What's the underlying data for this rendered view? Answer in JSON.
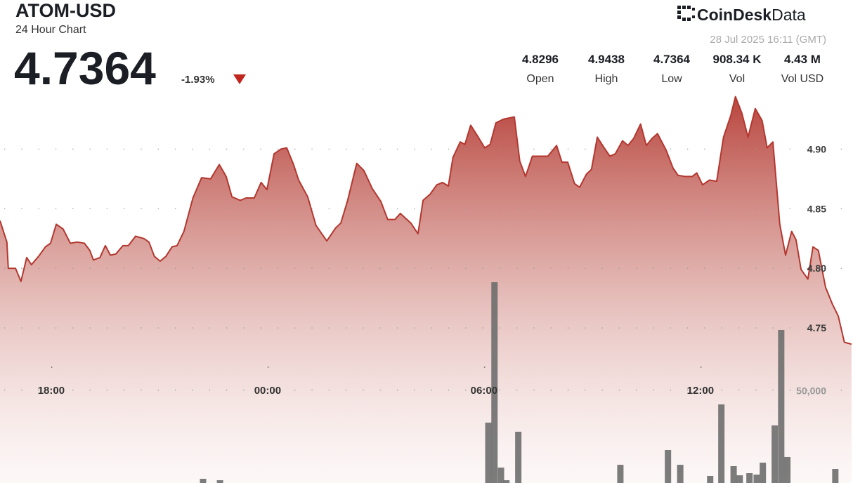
{
  "header": {
    "symbol": "ATOM-USD",
    "subtitle": "24 Hour Chart",
    "price": "4.7364",
    "change": "-1.93%",
    "brand": "CoinDesk",
    "brand_suffix": "Data",
    "timestamp": "28 Jul 2025 16:11 (GMT)",
    "stats": [
      {
        "value": "4.8296",
        "label": "Open"
      },
      {
        "value": "4.9438",
        "label": "High"
      },
      {
        "value": "4.7364",
        "label": "Low"
      },
      {
        "value": "908.34 K",
        "label": "Vol"
      },
      {
        "value": "4.43 M",
        "label": "Vol USD"
      }
    ]
  },
  "chart_data": {
    "type": "area",
    "color": "#b3372f",
    "grid": true,
    "x": [
      16.58,
      16.77,
      16.81,
      17.01,
      17.16,
      17.32,
      17.45,
      17.65,
      17.84,
      17.98,
      18.14,
      18.33,
      18.53,
      18.72,
      18.92,
      19.07,
      19.17,
      19.35,
      19.5,
      19.64,
      19.79,
      19.99,
      20.14,
      20.34,
      20.57,
      20.71,
      20.86,
      21.02,
      21.18,
      21.35,
      21.49,
      21.68,
      21.93,
      22.17,
      22.42,
      22.66,
      22.85,
      23.01,
      23.24,
      23.4,
      23.63,
      23.82,
      23.98,
      24.18,
      24.37,
      24.53,
      24.72,
      24.86,
      25.11,
      25.34,
      25.64,
      25.89,
      26.03,
      26.22,
      26.47,
      26.67,
      26.9,
      27.14,
      27.33,
      27.53,
      27.68,
      27.97,
      28.17,
      28.31,
      28.5,
      28.69,
      28.85,
      29.01,
      29.14,
      29.34,
      29.47,
      29.63,
      29.82,
      30.02,
      30.17,
      30.33,
      30.53,
      30.84,
      30.99,
      31.15,
      31.34,
      31.77,
      32.01,
      32.16,
      32.32,
      32.51,
      32.65,
      32.84,
      32.98,
      33.14,
      33.33,
      33.49,
      33.64,
      33.84,
      33.99,
      34.15,
      34.34,
      34.5,
      34.66,
      34.81,
      35.05,
      35.24,
      35.38,
      35.57,
      35.77,
      35.9,
      36.06,
      36.25,
      36.45,
      36.64,
      36.84,
      36.97,
      37.15,
      37.32,
      37.52,
      37.71,
      37.85,
      38.01,
      38.2,
      38.36,
      38.53,
      38.65,
      38.79,
      38.98,
      39.12,
      39.27,
      39.47,
      39.66,
      39.82,
      39.99,
      40.19
    ],
    "values": [
      4.84,
      4.822,
      4.8,
      4.8,
      4.789,
      4.809,
      4.803,
      4.81,
      4.818,
      4.821,
      4.837,
      4.833,
      4.821,
      4.822,
      4.821,
      4.815,
      4.807,
      4.809,
      4.819,
      4.811,
      4.812,
      4.819,
      4.819,
      4.827,
      4.825,
      4.822,
      4.81,
      4.806,
      4.81,
      4.818,
      4.819,
      4.831,
      4.859,
      4.876,
      4.875,
      4.887,
      4.877,
      4.86,
      4.857,
      4.859,
      4.859,
      4.872,
      4.866,
      4.896,
      4.9,
      4.901,
      4.887,
      4.874,
      4.86,
      4.836,
      4.823,
      4.834,
      4.838,
      4.857,
      4.888,
      4.882,
      4.867,
      4.856,
      4.841,
      4.841,
      4.846,
      4.838,
      4.829,
      4.857,
      4.862,
      4.87,
      4.872,
      4.869,
      4.893,
      4.906,
      4.904,
      4.92,
      4.911,
      4.901,
      4.904,
      4.922,
      4.925,
      4.927,
      4.89,
      4.877,
      4.894,
      4.894,
      4.903,
      4.889,
      4.889,
      4.871,
      4.868,
      4.879,
      4.883,
      4.91,
      4.901,
      4.894,
      4.896,
      4.907,
      4.903,
      4.909,
      4.921,
      4.903,
      4.909,
      4.913,
      4.899,
      4.884,
      4.878,
      4.877,
      4.877,
      4.88,
      4.87,
      4.874,
      4.873,
      4.91,
      4.928,
      4.944,
      4.93,
      4.91,
      4.934,
      4.924,
      4.901,
      4.906,
      4.837,
      4.811,
      4.831,
      4.824,
      4.799,
      4.791,
      4.818,
      4.815,
      4.784,
      4.77,
      4.76,
      4.738,
      4.7364
    ],
    "xlim": [
      16.58,
      40.23
    ],
    "xticks": [
      {
        "value": 18,
        "label": "18:00"
      },
      {
        "value": 24,
        "label": "00:00"
      },
      {
        "value": 30,
        "label": "06:00"
      },
      {
        "value": 36,
        "label": "12:00"
      }
    ],
    "ylim": [
      4.62,
      5.025
    ],
    "yticks": [
      4.75,
      {
        "value": 4.8,
        "label": "4.80"
      },
      4.85,
      {
        "value": 4.9,
        "label": "4.90"
      }
    ],
    "volume": {
      "axis": "y2",
      "color": "#6e6e6e",
      "x": [
        22.21,
        22.68,
        30.12,
        30.29,
        30.47,
        30.62,
        30.95,
        33.78,
        35.1,
        35.44,
        36.27,
        36.58,
        36.92,
        37.09,
        37.36,
        37.56,
        37.73,
        38.06,
        38.24,
        38.41,
        39.74
      ],
      "values": [
        2270,
        1500,
        32500,
        108080,
        8300,
        1500,
        27600,
        9800,
        17760,
        9800,
        3780,
        42300,
        9070,
        4160,
        5290,
        4530,
        10960,
        31000,
        82400,
        14000,
        7560
      ]
    },
    "y2lim": [
      0,
      260000
    ],
    "y2ticks": [
      {
        "value": 50000,
        "label": "50,000"
      }
    ]
  }
}
